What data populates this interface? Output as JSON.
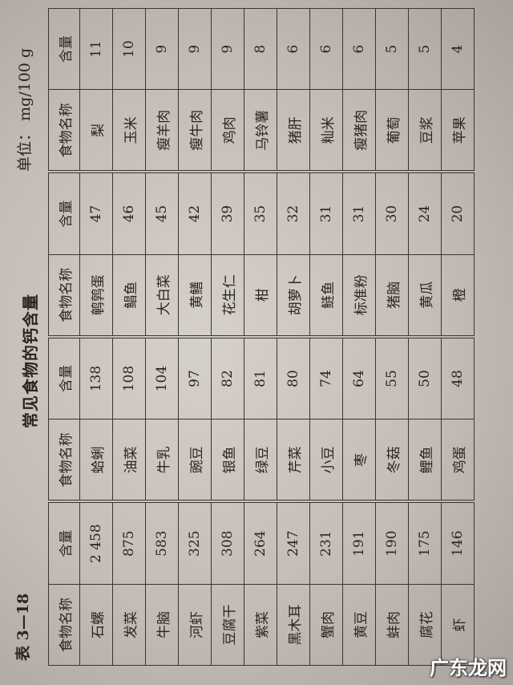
{
  "caption": "表 3—18",
  "title": "常见食物的钙含量",
  "unit": "单位： mg/100 g",
  "headers": [
    "食物名称",
    "含量",
    "食物名称",
    "含量",
    "食物名称",
    "含量",
    "食物名称",
    "含量"
  ],
  "rows": [
    [
      "石螺",
      "2 458",
      "蛤蜊",
      "138",
      "鹌鹑蛋",
      "47",
      "梨",
      "11"
    ],
    [
      "发菜",
      "875",
      "油菜",
      "108",
      "鲳鱼",
      "46",
      "玉米",
      "10"
    ],
    [
      "牛脑",
      "583",
      "牛乳",
      "104",
      "大白菜",
      "45",
      "瘦羊肉",
      "9"
    ],
    [
      "河虾",
      "325",
      "豌豆",
      "97",
      "黄鳝",
      "42",
      "瘦牛肉",
      "9"
    ],
    [
      "豆腐干",
      "308",
      "银鱼",
      "82",
      "花生仁",
      "39",
      "鸡肉",
      "9"
    ],
    [
      "紫菜",
      "264",
      "绿豆",
      "81",
      "柑",
      "35",
      "马铃薯",
      "8"
    ],
    [
      "黑木耳",
      "247",
      "芹菜",
      "80",
      "胡萝卜",
      "32",
      "猪肝",
      "6"
    ],
    [
      "蟹肉",
      "231",
      "小豆",
      "74",
      "鲢鱼",
      "31",
      "籼米",
      "6"
    ],
    [
      "黄豆",
      "191",
      "枣",
      "64",
      "标准粉",
      "31",
      "瘦猪肉",
      "6"
    ],
    [
      "蚌肉",
      "190",
      "冬菇",
      "55",
      "猪脑",
      "30",
      "葡萄",
      "5"
    ],
    [
      "腐花",
      "175",
      "鲤鱼",
      "50",
      "黄瓜",
      "24",
      "豆浆",
      "5"
    ],
    [
      "虾",
      "146",
      "鸡蛋",
      "48",
      "橙",
      "20",
      "苹果",
      "4"
    ]
  ],
  "watermark": "广东龙网"
}
